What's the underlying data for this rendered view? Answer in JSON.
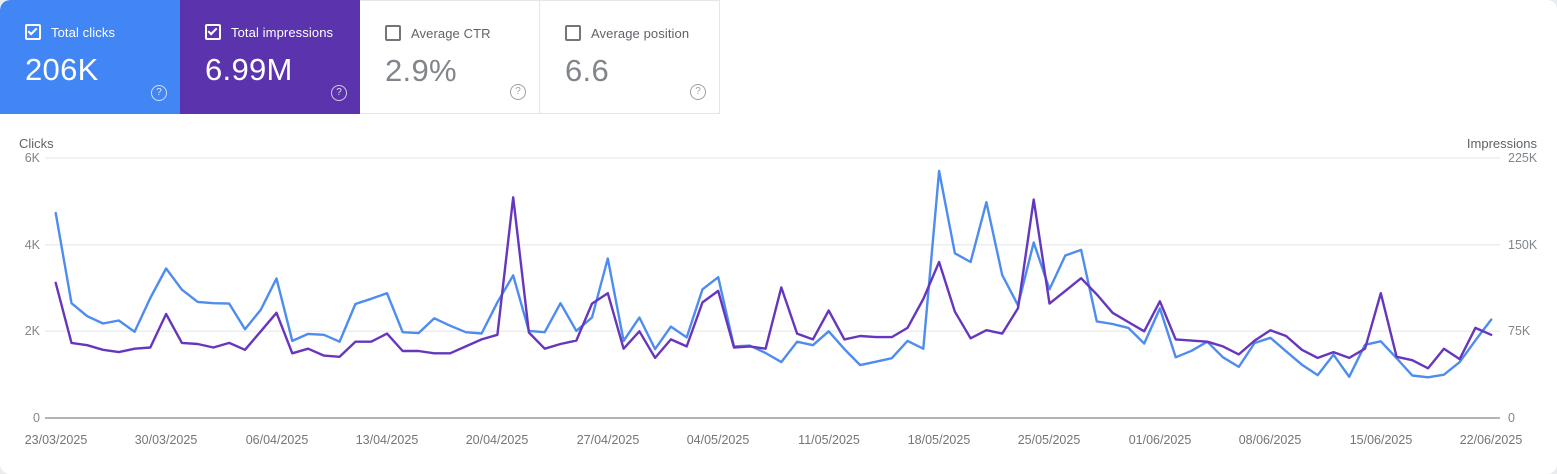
{
  "help_glyph": "?",
  "colors": {
    "clicks_card_bg": "#4285f4",
    "impressions_card_bg": "#5b33ad",
    "clicks_line": "#4e8cf0",
    "impressions_line": "#6637bd",
    "grid_line": "#ebedef",
    "zero_line": "#b1b5b9"
  },
  "metric_cards": [
    {
      "label": "Total clicks",
      "value": "206K",
      "checked": true
    },
    {
      "label": "Total impressions",
      "value": "6.99M",
      "checked": true
    },
    {
      "label": "Average CTR",
      "value": "2.9%",
      "checked": false
    },
    {
      "label": "Average position",
      "value": "6.6",
      "checked": false
    }
  ],
  "chart_data": {
    "type": "line",
    "grid": "horizontal",
    "legend_position": "none",
    "x_tick_labels": [
      "23/03/2025",
      "30/03/2025",
      "06/04/2025",
      "13/04/2025",
      "20/04/2025",
      "27/04/2025",
      "04/05/2025",
      "11/05/2025",
      "18/05/2025",
      "25/05/2025",
      "01/06/2025",
      "08/06/2025",
      "15/06/2025",
      "22/06/2025"
    ],
    "left_axis": {
      "title": "Clicks",
      "ticks": [
        "6K",
        "4K",
        "2K",
        "0"
      ],
      "min": 0,
      "max": 6000
    },
    "right_axis": {
      "title": "Impressions",
      "ticks": [
        "225K",
        "150K",
        "75K",
        "0"
      ],
      "min": 0,
      "max": 225000
    },
    "series": [
      {
        "name": "Total clicks",
        "axis": "left",
        "color": "#4e8cf0",
        "values": [
          4730,
          2650,
          2350,
          2180,
          2250,
          1990,
          2770,
          3450,
          2960,
          2680,
          2650,
          2640,
          2050,
          2500,
          3220,
          1780,
          1940,
          1920,
          1760,
          2630,
          2750,
          2880,
          1980,
          1960,
          2300,
          2130,
          1980,
          1950,
          2670,
          3290,
          2010,
          1980,
          2650,
          2010,
          2320,
          3680,
          1780,
          2320,
          1590,
          2110,
          1860,
          2970,
          3250,
          1650,
          1670,
          1500,
          1290,
          1760,
          1680,
          2000,
          1590,
          1220,
          1300,
          1380,
          1780,
          1600,
          5700,
          3800,
          3600,
          4980,
          3300,
          2600,
          4050,
          2970,
          3750,
          3880,
          2230,
          2170,
          2080,
          1720,
          2530,
          1400,
          1550,
          1760,
          1400,
          1180,
          1730,
          1850,
          1540,
          1230,
          990,
          1460,
          950,
          1690,
          1770,
          1380,
          980,
          940,
          1000,
          1290,
          1790,
          2270
        ]
      },
      {
        "name": "Total impressions",
        "axis": "right",
        "color": "#6637bd",
        "values": [
          117000,
          65000,
          63000,
          59000,
          57000,
          60000,
          61000,
          90000,
          65000,
          64000,
          61000,
          65000,
          59000,
          75000,
          91000,
          56000,
          60000,
          54000,
          53000,
          66000,
          66000,
          73000,
          58000,
          58000,
          56000,
          56000,
          62000,
          68000,
          72000,
          191000,
          74000,
          60000,
          64000,
          67000,
          99000,
          108000,
          60000,
          75000,
          52000,
          68000,
          62000,
          100000,
          110000,
          61000,
          62000,
          60000,
          113000,
          73000,
          68000,
          93000,
          68000,
          71000,
          70000,
          70000,
          78000,
          103000,
          135000,
          92000,
          69000,
          76000,
          73000,
          95000,
          189000,
          99000,
          110000,
          121000,
          107000,
          91000,
          83000,
          75000,
          101000,
          68000,
          67000,
          66000,
          62000,
          55000,
          67000,
          76000,
          71000,
          59000,
          52000,
          57000,
          52000,
          60000,
          108000,
          53000,
          50000,
          43000,
          60000,
          51000,
          78000,
          72000
        ]
      }
    ]
  }
}
